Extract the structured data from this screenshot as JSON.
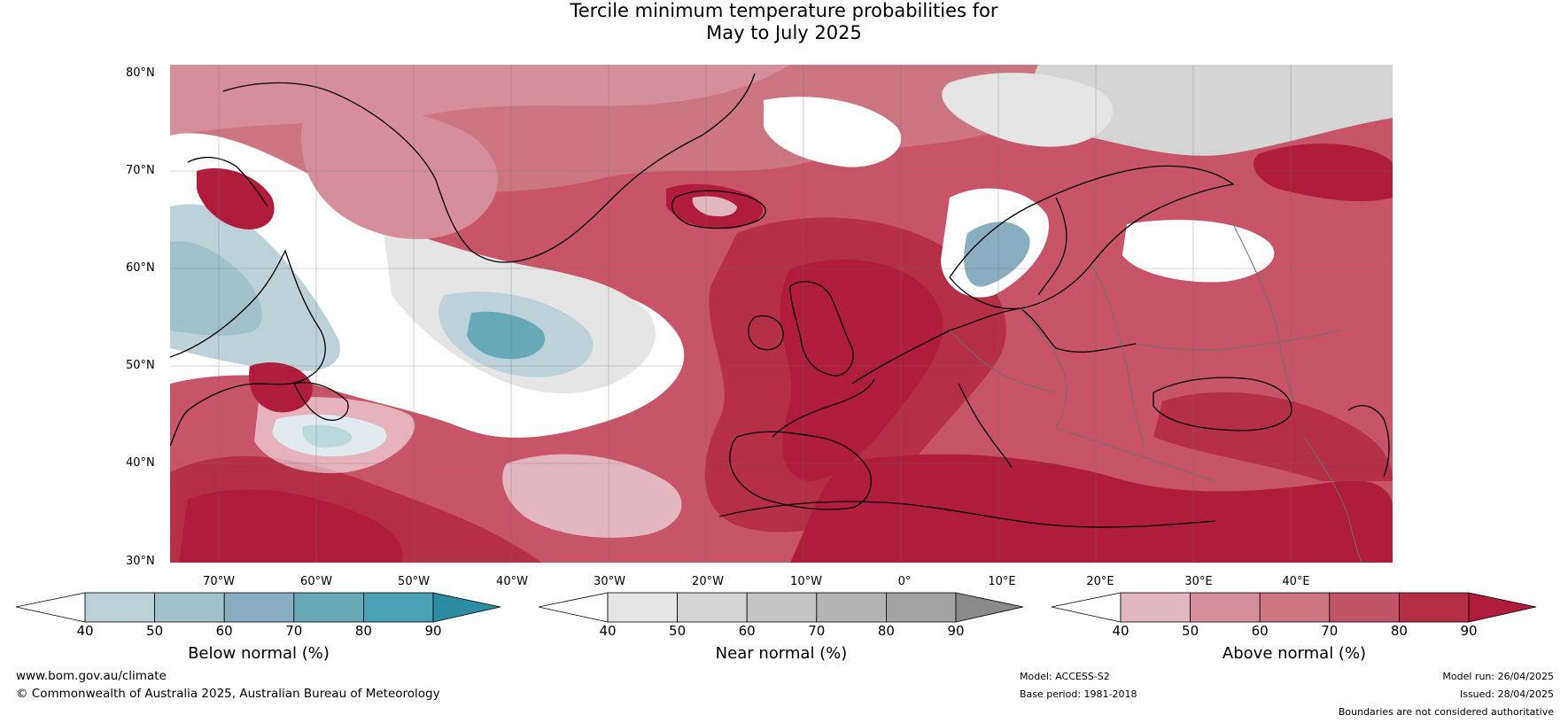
{
  "title": {
    "line1": "Tercile minimum temperature probabilities for",
    "line2": "May to July 2025"
  },
  "map": {
    "lat_labels": [
      "80°N",
      "70°N",
      "60°N",
      "50°N",
      "40°N",
      "30°N"
    ],
    "lon_labels": [
      "70°W",
      "60°W",
      "50°W",
      "40°W",
      "30°W",
      "20°W",
      "10°W",
      "0°",
      "10°E",
      "20°E",
      "30°E",
      "40°E"
    ],
    "extent": {
      "lon_min": -77.5,
      "lon_max": 47.5,
      "lat_min": 30,
      "lat_max": 81
    },
    "gridlines": true
  },
  "legend": {
    "below": {
      "title": "Below normal (%)",
      "ticks": [
        "40",
        "50",
        "60",
        "70",
        "80",
        "90"
      ],
      "colors": [
        "#bcd1d9",
        "#a2c1cb",
        "#88aebf",
        "#68a9b7",
        "#4aa1b4",
        "#2b8ca3"
      ]
    },
    "near": {
      "title": "Near normal (%)",
      "ticks": [
        "40",
        "50",
        "60",
        "70",
        "80",
        "90"
      ],
      "colors": [
        "#e5e5e5",
        "#d5d5d5",
        "#c5c5c5",
        "#b4b4b4",
        "#a3a3a3",
        "#8a8a8a"
      ]
    },
    "above": {
      "title": "Above normal (%)",
      "ticks": [
        "40",
        "50",
        "60",
        "70",
        "80",
        "90"
      ],
      "colors": [
        "#e3b7bf",
        "#d68f9a",
        "#cc7682",
        "#c25468",
        "#b52f47",
        "#b01c3c"
      ]
    }
  },
  "footer": {
    "website": "www.bom.gov.au/climate",
    "copyright": "© Commonwealth of Australia 2025, Australian Bureau of Meteorology",
    "model": "Model: ACCESS-S2",
    "base_period": "Base period: 1981-2018",
    "model_run": "Model run: 26/04/2025",
    "issued": "Issued: 28/04/2025",
    "disclaimer": "Boundaries are not considered authoritative"
  }
}
